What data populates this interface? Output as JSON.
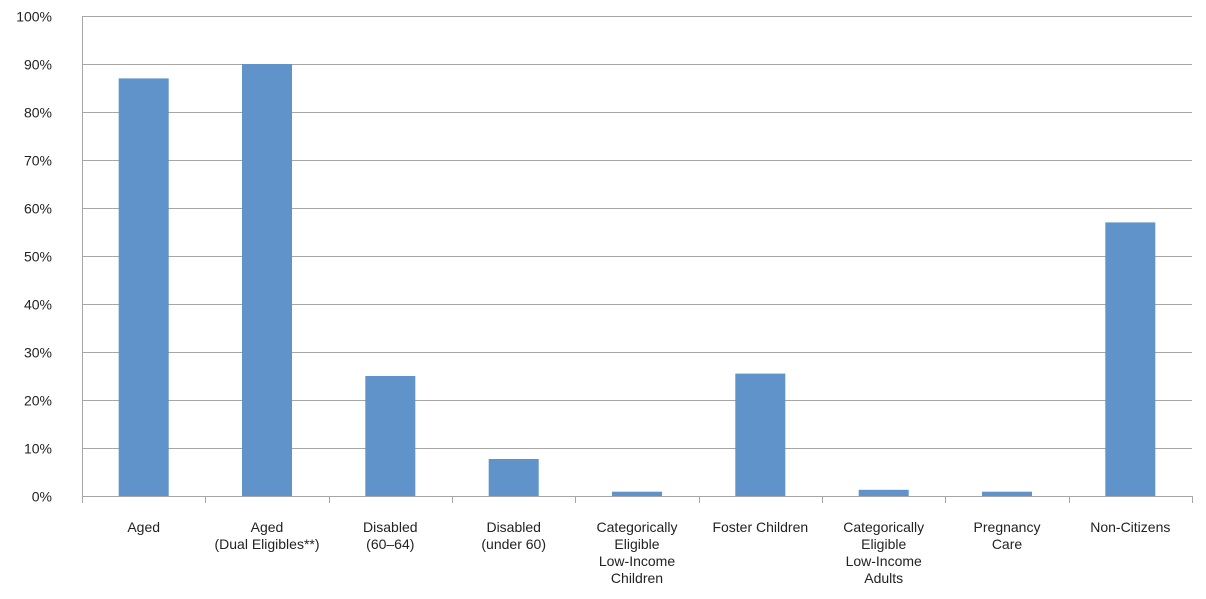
{
  "chart_data": {
    "type": "bar",
    "categories": [
      [
        "Aged"
      ],
      [
        "Aged",
        "(Dual Eligibles**)"
      ],
      [
        "Disabled",
        "(60–64)"
      ],
      [
        "Disabled",
        "(under 60)"
      ],
      [
        "Categorically",
        "Eligible",
        "Low-Income",
        "Children"
      ],
      [
        "Foster Children"
      ],
      [
        "Categorically",
        "Eligible",
        "Low-Income",
        "Adults"
      ],
      [
        "Pregnancy",
        "Care"
      ],
      [
        "Non-Citizens"
      ]
    ],
    "values": [
      87,
      90,
      25,
      7.7,
      0.9,
      25.5,
      1.3,
      0.9,
      57
    ],
    "ylim": [
      0,
      100
    ],
    "ytick_step": 10,
    "ytick_labels": [
      "0%",
      "10%",
      "20%",
      "30%",
      "40%",
      "50%",
      "60%",
      "70%",
      "80%",
      "90%",
      "100%"
    ],
    "title": "",
    "xlabel": "",
    "ylabel": "",
    "grid": true,
    "bar_color": "#5f93c9",
    "grid_color": "#a6a6a6"
  }
}
